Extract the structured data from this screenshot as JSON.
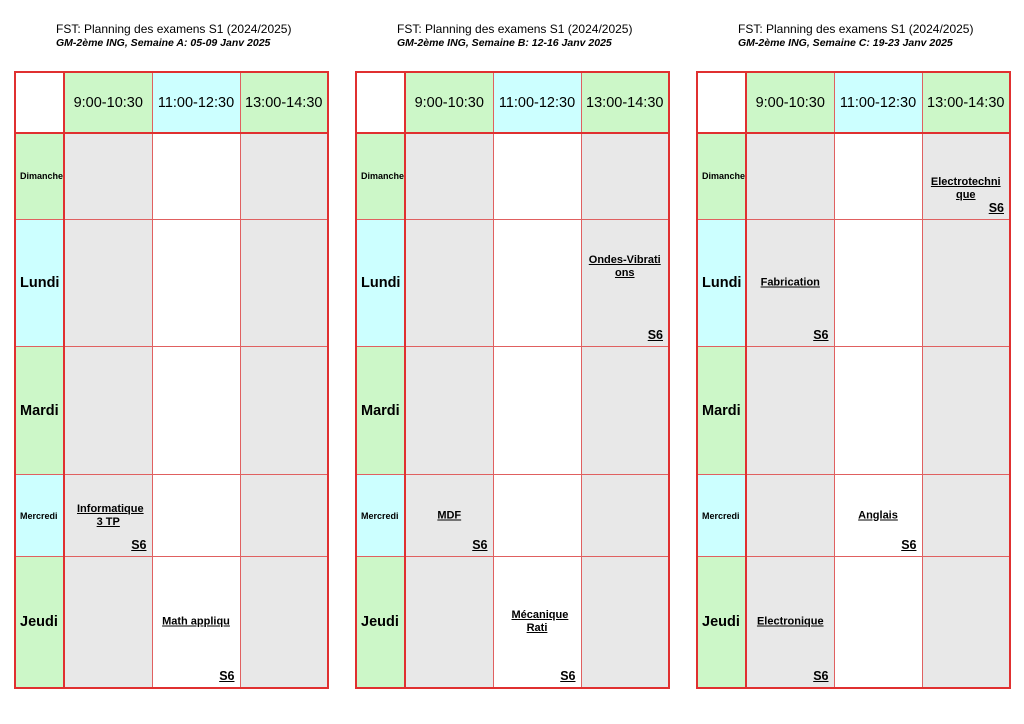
{
  "colors": {
    "grid_border": "#e03030",
    "slot_green": "#ccf7c8",
    "slot_cyan": "#ccffff",
    "cell_grey": "#e8e8e8"
  },
  "slots": [
    "9:00-10:30",
    "11:00-12:30",
    "13:00-14:30"
  ],
  "days": [
    "Dimanche",
    "Lundi",
    "Mardi",
    "Mercredi",
    "Jeudi"
  ],
  "weeks": [
    {
      "title": "FST: Planning des examens S1 (2024/2025)",
      "subtitle": "GM-2ème ING, Semaine A: 05-09 Janv 2025",
      "exams": {
        "mercredi_1": {
          "name": "Informatique 3 TP",
          "room": "S6"
        },
        "jeudi_2": {
          "name": "Math appliqu",
          "room": "S6"
        }
      }
    },
    {
      "title": "FST: Planning des examens S1 (2024/2025)",
      "subtitle": "GM-2ème ING, Semaine B: 12-16 Janv 2025",
      "exams": {
        "lundi_3": {
          "name": "Ondes-Vibrati ons",
          "room": "S6"
        },
        "mercredi_1": {
          "name": "MDF",
          "room": "S6"
        },
        "jeudi_2": {
          "name": "Mécanique Rati",
          "room": "S6"
        }
      }
    },
    {
      "title": "FST: Planning des examens S1 (2024/2025)",
      "subtitle": "GM-2ème ING, Semaine C: 19-23 Janv 2025",
      "exams": {
        "dimanche_3": {
          "name": "Electrotechni que",
          "room": "S6"
        },
        "lundi_1": {
          "name": "Fabrication",
          "room": "S6"
        },
        "mercredi_2": {
          "name": "Anglais",
          "room": "S6"
        },
        "jeudi_1": {
          "name": "Electronique",
          "room": "S6"
        }
      }
    }
  ]
}
